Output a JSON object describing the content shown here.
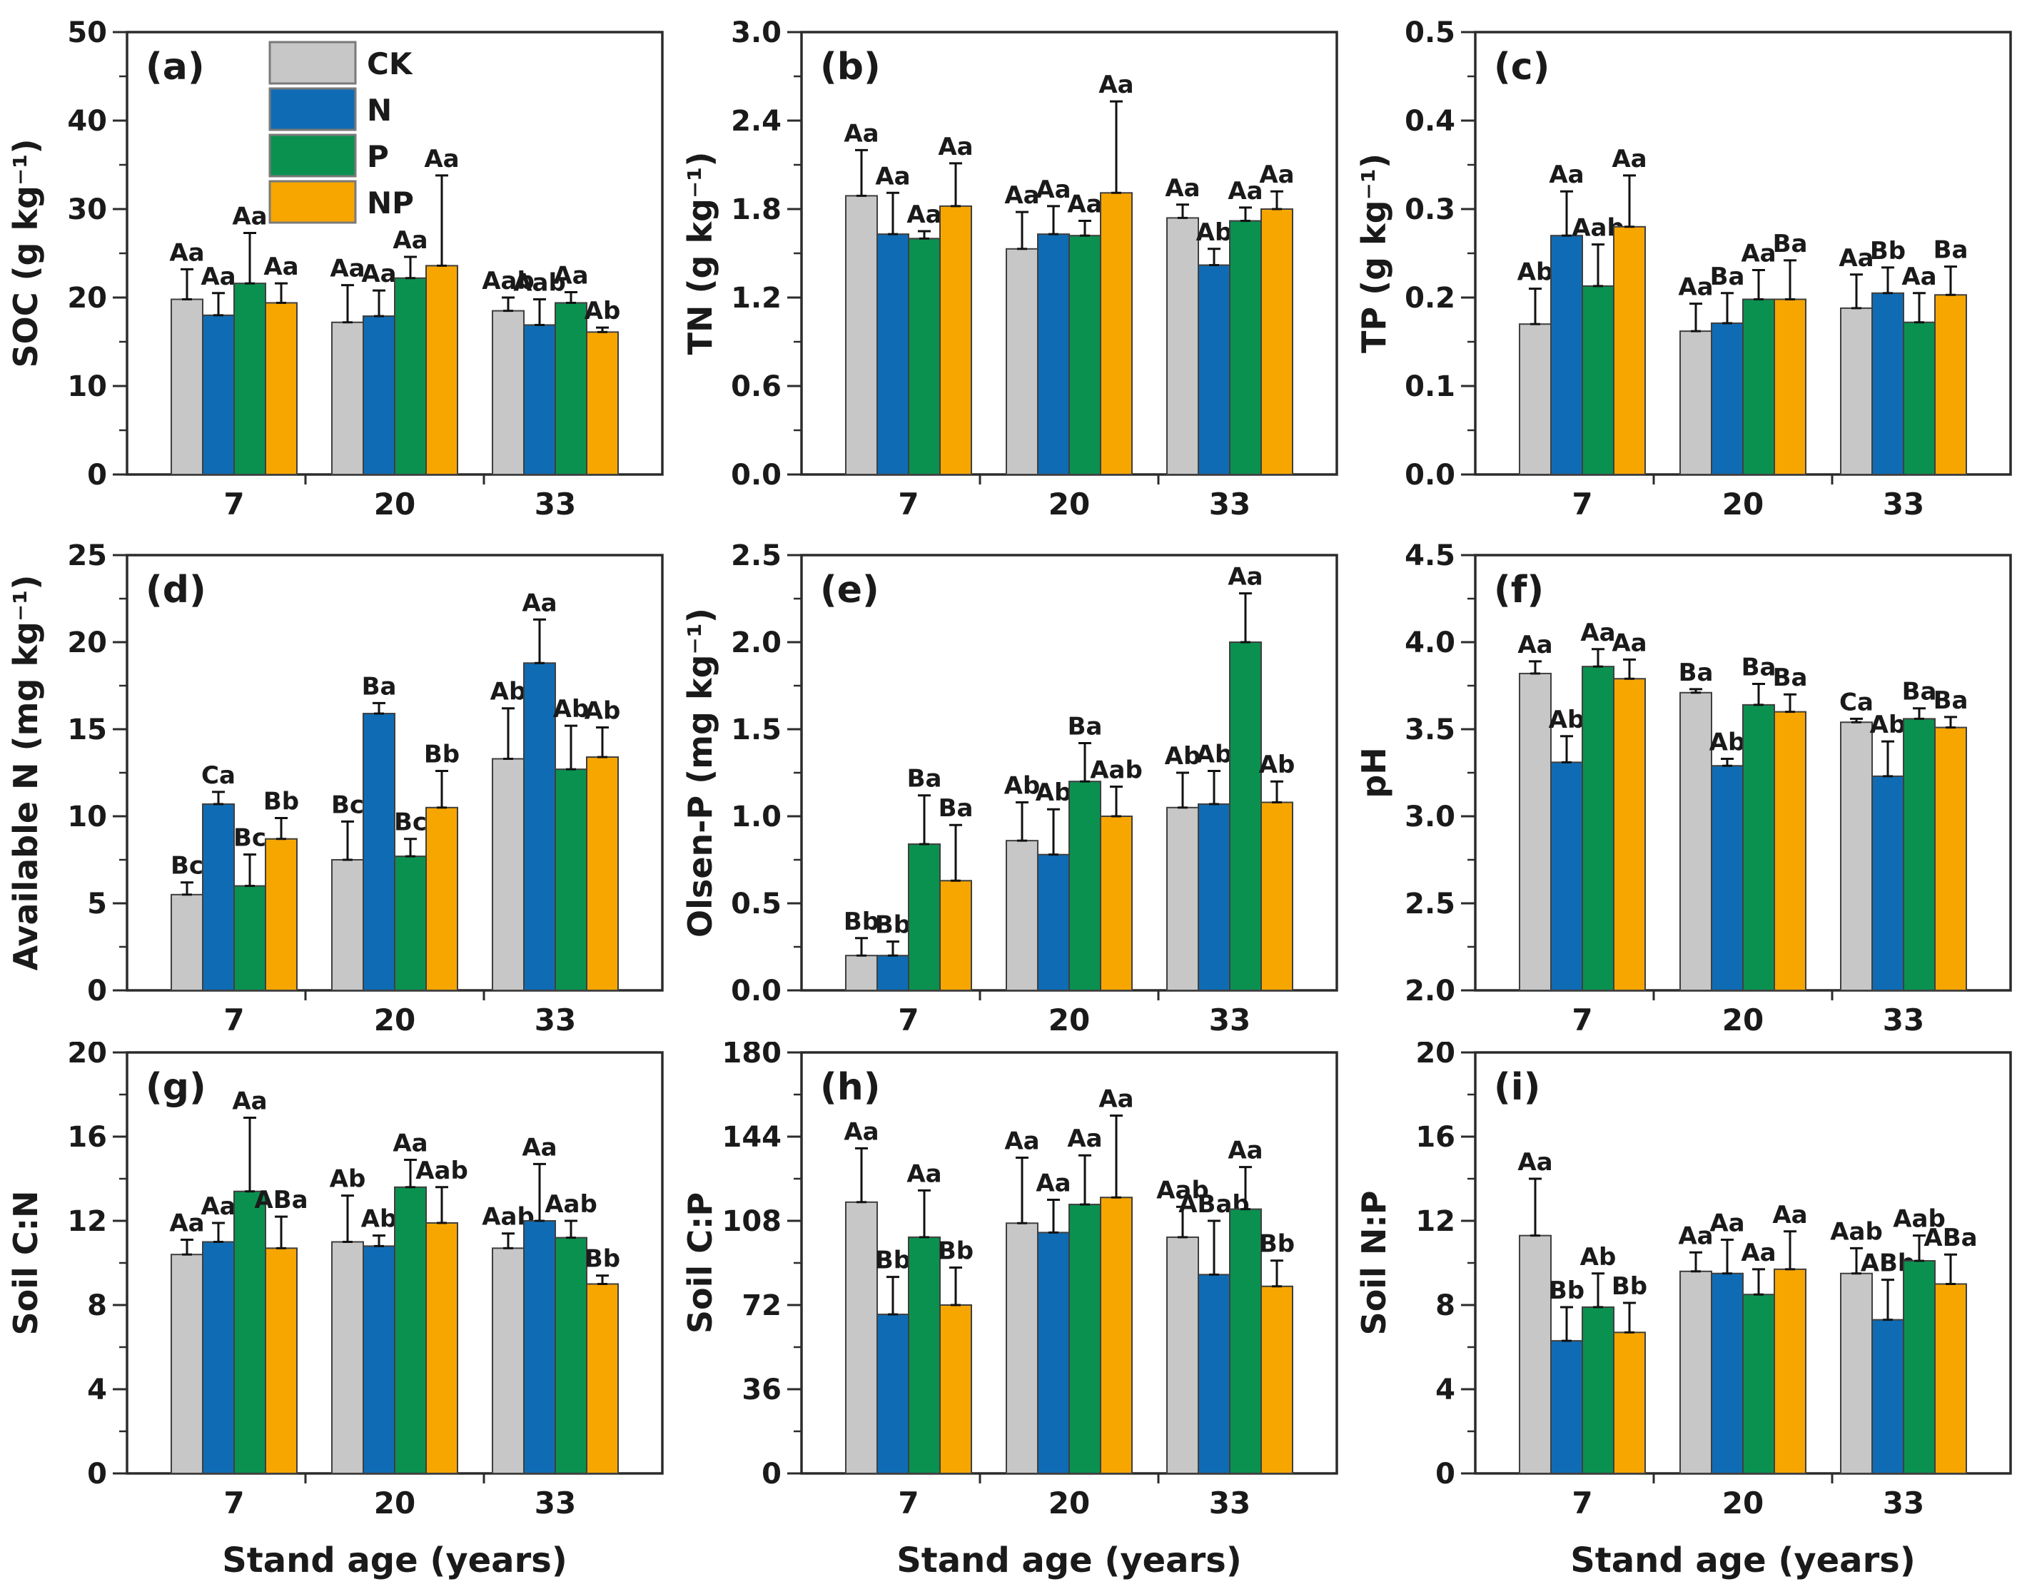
{
  "figure": {
    "xlabel": "Stand age (years)",
    "categories": [
      "7",
      "20",
      "33"
    ],
    "treatments": [
      "CK",
      "N",
      "P",
      "NP"
    ],
    "legend": {
      "entries": [
        {
          "label": "CK",
          "color": "#c7c7c7"
        },
        {
          "label": "N",
          "color": "#0f6cb4"
        },
        {
          "label": "P",
          "color": "#0a9150"
        },
        {
          "label": "NP",
          "color": "#f7a600"
        }
      ]
    },
    "colors": {
      "CK": "#c7c7c7",
      "N": "#0f6cb4",
      "P": "#0a9150",
      "NP": "#f7a600",
      "bar_stroke": "#3f3f3f",
      "axis": "#2b2b2b",
      "text": "#1a1a1a"
    }
  },
  "chart_data": [
    {
      "id": "a",
      "panel_label": "(a)",
      "type": "bar",
      "ylabel": "SOC (g kg⁻¹)",
      "ymin": 0,
      "ymax": 50,
      "yticks": [
        "0",
        "10",
        "20",
        "30",
        "40",
        "50"
      ],
      "categories": [
        "7",
        "20",
        "33"
      ],
      "legend": true,
      "show_xlabel": false,
      "series": [
        {
          "name": "CK",
          "values": [
            19.8,
            17.2,
            18.5
          ],
          "errors": [
            3.4,
            4.2,
            1.5
          ],
          "sig_labels": [
            "Aa",
            "Aa",
            "Aab"
          ]
        },
        {
          "name": "N",
          "values": [
            18.0,
            17.9,
            16.9
          ],
          "errors": [
            2.5,
            2.9,
            2.9
          ],
          "sig_labels": [
            "Aa",
            "Aa",
            "Aab"
          ]
        },
        {
          "name": "P",
          "values": [
            21.6,
            22.2,
            19.4
          ],
          "errors": [
            5.7,
            2.4,
            1.2
          ],
          "sig_labels": [
            "Aa",
            "Aa",
            "Aa"
          ]
        },
        {
          "name": "NP",
          "values": [
            19.4,
            23.6,
            16.1
          ],
          "errors": [
            2.2,
            10.2,
            0.5
          ],
          "sig_labels": [
            "Aa",
            "Aa",
            "Ab"
          ]
        }
      ]
    },
    {
      "id": "b",
      "panel_label": "(b)",
      "type": "bar",
      "ylabel": "TN (g kg⁻¹)",
      "ymin": 0,
      "ymax": 3.0,
      "yticks": [
        "0.0",
        "0.6",
        "1.2",
        "1.8",
        "2.4",
        "3.0"
      ],
      "categories": [
        "7",
        "20",
        "33"
      ],
      "legend": false,
      "show_xlabel": false,
      "series": [
        {
          "name": "CK",
          "values": [
            1.89,
            1.53,
            1.74
          ],
          "errors": [
            0.31,
            0.25,
            0.09
          ],
          "sig_labels": [
            "Aa",
            "Aa",
            "Aa"
          ]
        },
        {
          "name": "N",
          "values": [
            1.63,
            1.63,
            1.42
          ],
          "errors": [
            0.28,
            0.19,
            0.11
          ],
          "sig_labels": [
            "Aa",
            "Aa",
            "Ab"
          ]
        },
        {
          "name": "P",
          "values": [
            1.6,
            1.62,
            1.72
          ],
          "errors": [
            0.05,
            0.1,
            0.09
          ],
          "sig_labels": [
            "Aa",
            "Aa",
            "Aa"
          ]
        },
        {
          "name": "NP",
          "values": [
            1.82,
            1.91,
            1.8
          ],
          "errors": [
            0.29,
            0.62,
            0.12
          ],
          "sig_labels": [
            "Aa",
            "Aa",
            "Aa"
          ]
        }
      ]
    },
    {
      "id": "c",
      "panel_label": "(c)",
      "type": "bar",
      "ylabel": "TP (g kg⁻¹)",
      "ymin": 0,
      "ymax": 0.5,
      "yticks": [
        "0.0",
        "0.1",
        "0.2",
        "0.3",
        "0.4",
        "0.5"
      ],
      "categories": [
        "7",
        "20",
        "33"
      ],
      "legend": false,
      "show_xlabel": false,
      "series": [
        {
          "name": "CK",
          "values": [
            0.17,
            0.162,
            0.188
          ],
          "errors": [
            0.04,
            0.031,
            0.038
          ],
          "sig_labels": [
            "Ab",
            "Aa",
            "Aa"
          ]
        },
        {
          "name": "N",
          "values": [
            0.27,
            0.171,
            0.205
          ],
          "errors": [
            0.05,
            0.034,
            0.029
          ],
          "sig_labels": [
            "Aa",
            "Ba",
            "Bb"
          ]
        },
        {
          "name": "P",
          "values": [
            0.213,
            0.198,
            0.172
          ],
          "errors": [
            0.047,
            0.033,
            0.033
          ],
          "sig_labels": [
            "Aab",
            "Aa",
            "Aa"
          ]
        },
        {
          "name": "NP",
          "values": [
            0.28,
            0.198,
            0.203
          ],
          "errors": [
            0.058,
            0.044,
            0.032
          ],
          "sig_labels": [
            "Aa",
            "Ba",
            "Ba"
          ]
        }
      ]
    },
    {
      "id": "d",
      "panel_label": "(d)",
      "type": "bar",
      "ylabel": "Available N (mg kg⁻¹)",
      "ymin": 0,
      "ymax": 25,
      "yticks": [
        "0",
        "5",
        "10",
        "15",
        "20",
        "25"
      ],
      "categories": [
        "7",
        "20",
        "33"
      ],
      "legend": false,
      "show_xlabel": false,
      "series": [
        {
          "name": "CK",
          "values": [
            5.5,
            7.5,
            13.3
          ],
          "errors": [
            0.7,
            2.2,
            2.9
          ],
          "sig_labels": [
            "Bc",
            "Bc",
            "Ab"
          ]
        },
        {
          "name": "N",
          "values": [
            10.7,
            15.9,
            18.8
          ],
          "errors": [
            0.7,
            0.6,
            2.5
          ],
          "sig_labels": [
            "Ca",
            "Ba",
            "Aa"
          ]
        },
        {
          "name": "P",
          "values": [
            6.0,
            7.7,
            12.7
          ],
          "errors": [
            1.8,
            1.0,
            2.5
          ],
          "sig_labels": [
            "Bc",
            "Bc",
            "Ab"
          ]
        },
        {
          "name": "NP",
          "values": [
            8.7,
            10.5,
            13.4
          ],
          "errors": [
            1.2,
            2.1,
            1.7
          ],
          "sig_labels": [
            "Bb",
            "Bb",
            "Ab"
          ]
        }
      ]
    },
    {
      "id": "e",
      "panel_label": "(e)",
      "type": "bar",
      "ylabel": "Olsen-P (mg kg⁻¹)",
      "ymin": 0,
      "ymax": 2.5,
      "yticks": [
        "0.0",
        "0.5",
        "1.0",
        "1.5",
        "2.0",
        "2.5"
      ],
      "categories": [
        "7",
        "20",
        "33"
      ],
      "legend": false,
      "show_xlabel": false,
      "series": [
        {
          "name": "CK",
          "values": [
            0.2,
            0.86,
            1.05
          ],
          "errors": [
            0.1,
            0.22,
            0.2
          ],
          "sig_labels": [
            "Bb",
            "Ab",
            "Ab"
          ]
        },
        {
          "name": "N",
          "values": [
            0.2,
            0.78,
            1.07
          ],
          "errors": [
            0.08,
            0.26,
            0.19
          ],
          "sig_labels": [
            "Bb",
            "Ab",
            "Ab"
          ]
        },
        {
          "name": "P",
          "values": [
            0.84,
            1.2,
            2.0
          ],
          "errors": [
            0.28,
            0.22,
            0.28
          ],
          "sig_labels": [
            "Ba",
            "Ba",
            "Aa"
          ]
        },
        {
          "name": "NP",
          "values": [
            0.63,
            1.0,
            1.08
          ],
          "errors": [
            0.32,
            0.17,
            0.12
          ],
          "sig_labels": [
            "Ba",
            "Aab",
            "Ab"
          ]
        }
      ]
    },
    {
      "id": "f",
      "panel_label": "(f)",
      "type": "bar",
      "ylabel": "pH",
      "ymin": 2.0,
      "ymax": 4.5,
      "yticks": [
        "2.0",
        "2.5",
        "3.0",
        "3.5",
        "4.0",
        "4.5"
      ],
      "categories": [
        "7",
        "20",
        "33"
      ],
      "legend": false,
      "show_xlabel": false,
      "series": [
        {
          "name": "CK",
          "values": [
            3.82,
            3.71,
            3.54
          ],
          "errors": [
            0.07,
            0.02,
            0.02
          ],
          "sig_labels": [
            "Aa",
            "Ba",
            "Ca"
          ]
        },
        {
          "name": "N",
          "values": [
            3.31,
            3.29,
            3.23
          ],
          "errors": [
            0.15,
            0.04,
            0.2
          ],
          "sig_labels": [
            "Ab",
            "Ab",
            "Ab"
          ]
        },
        {
          "name": "P",
          "values": [
            3.86,
            3.64,
            3.56
          ],
          "errors": [
            0.1,
            0.12,
            0.06
          ],
          "sig_labels": [
            "Aa",
            "Ba",
            "Ba"
          ]
        },
        {
          "name": "NP",
          "values": [
            3.79,
            3.6,
            3.51
          ],
          "errors": [
            0.11,
            0.1,
            0.06
          ],
          "sig_labels": [
            "Aa",
            "Ba",
            "Ba"
          ]
        }
      ]
    },
    {
      "id": "g",
      "panel_label": "(g)",
      "type": "bar",
      "ylabel": "Soil C:N",
      "ymin": 0,
      "ymax": 20,
      "yticks": [
        "0",
        "4",
        "8",
        "12",
        "16",
        "20"
      ],
      "categories": [
        "7",
        "20",
        "33"
      ],
      "legend": false,
      "show_xlabel": true,
      "series": [
        {
          "name": "CK",
          "values": [
            10.4,
            11.0,
            10.7
          ],
          "errors": [
            0.7,
            2.2,
            0.7
          ],
          "sig_labels": [
            "Aa",
            "Ab",
            "Aab"
          ]
        },
        {
          "name": "N",
          "values": [
            11.0,
            10.8,
            12.0
          ],
          "errors": [
            0.9,
            0.5,
            2.7
          ],
          "sig_labels": [
            "Aa",
            "Ab",
            "Aa"
          ]
        },
        {
          "name": "P",
          "values": [
            13.4,
            13.6,
            11.2
          ],
          "errors": [
            3.5,
            1.3,
            0.8
          ],
          "sig_labels": [
            "Aa",
            "Aa",
            "Aab"
          ]
        },
        {
          "name": "NP",
          "values": [
            10.7,
            11.9,
            9.0
          ],
          "errors": [
            1.5,
            1.7,
            0.4
          ],
          "sig_labels": [
            "ABa",
            "Aab",
            "Bb"
          ]
        }
      ]
    },
    {
      "id": "h",
      "panel_label": "(h)",
      "type": "bar",
      "ylabel": "Soil C:P",
      "ymin": 0,
      "ymax": 180,
      "yticks": [
        "0",
        "36",
        "72",
        "108",
        "144",
        "180"
      ],
      "categories": [
        "7",
        "20",
        "33"
      ],
      "legend": false,
      "show_xlabel": true,
      "series": [
        {
          "name": "CK",
          "values": [
            116,
            107,
            101
          ],
          "errors": [
            23,
            28,
            13
          ],
          "sig_labels": [
            "Aa",
            "Aa",
            "Aab"
          ]
        },
        {
          "name": "N",
          "values": [
            68,
            103,
            85
          ],
          "errors": [
            16,
            14,
            23
          ],
          "sig_labels": [
            "Bb",
            "Aa",
            "ABab"
          ]
        },
        {
          "name": "P",
          "values": [
            101,
            115,
            113
          ],
          "errors": [
            20,
            21,
            18
          ],
          "sig_labels": [
            "Aa",
            "Aa",
            "Aa"
          ]
        },
        {
          "name": "NP",
          "values": [
            72,
            118,
            80
          ],
          "errors": [
            16,
            35,
            11
          ],
          "sig_labels": [
            "Bb",
            "Aa",
            "Bb"
          ]
        }
      ]
    },
    {
      "id": "i",
      "panel_label": "(i)",
      "type": "bar",
      "ylabel": "Soil N:P",
      "ymin": 0,
      "ymax": 20,
      "yticks": [
        "0",
        "4",
        "8",
        "12",
        "16",
        "20"
      ],
      "categories": [
        "7",
        "20",
        "33"
      ],
      "legend": false,
      "show_xlabel": true,
      "series": [
        {
          "name": "CK",
          "values": [
            11.3,
            9.6,
            9.5
          ],
          "errors": [
            2.7,
            0.9,
            1.2
          ],
          "sig_labels": [
            "Aa",
            "Aa",
            "Aab"
          ]
        },
        {
          "name": "N",
          "values": [
            6.3,
            9.5,
            7.3
          ],
          "errors": [
            1.6,
            1.6,
            1.9
          ],
          "sig_labels": [
            "Bb",
            "Aa",
            "ABb"
          ]
        },
        {
          "name": "P",
          "values": [
            7.9,
            8.5,
            10.1
          ],
          "errors": [
            1.6,
            1.2,
            1.2
          ],
          "sig_labels": [
            "Ab",
            "Aa",
            "Aab"
          ]
        },
        {
          "name": "NP",
          "values": [
            6.7,
            9.7,
            9.0
          ],
          "errors": [
            1.4,
            1.8,
            1.4
          ],
          "sig_labels": [
            "Bb",
            "Aa",
            "ABa"
          ]
        }
      ]
    }
  ]
}
